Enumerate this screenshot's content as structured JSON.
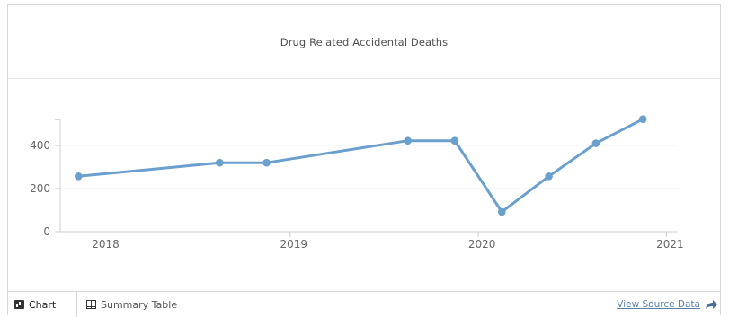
{
  "chart_data": {
    "type": "line",
    "title": "Drug Related Accidental Deaths",
    "xlabel": "",
    "ylabel": "",
    "x_ticks": [
      "2018",
      "2019",
      "2020",
      "2021"
    ],
    "y_ticks": [
      "0",
      "200",
      "400"
    ],
    "ylim": [
      0,
      520
    ],
    "grid": true,
    "series": [
      {
        "color": "#6b9fce",
        "points": [
          {
            "x": "2017-11",
            "y": 257
          },
          {
            "x": "2018-08",
            "y": 320
          },
          {
            "x": "2018-11",
            "y": 320
          },
          {
            "x": "2019-08",
            "y": 422
          },
          {
            "x": "2019-11",
            "y": 422
          },
          {
            "x": "2020-02",
            "y": 92
          },
          {
            "x": "2020-05",
            "y": 257
          },
          {
            "x": "2020-08",
            "y": 410
          },
          {
            "x": "2020-11",
            "y": 522
          }
        ]
      }
    ]
  },
  "tabs": {
    "chart_label": "Chart",
    "table_label": "Summary Table"
  },
  "footer": {
    "source_link": "View Source Data"
  },
  "icons": {
    "chart_tab": "chart-icon",
    "table_tab": "table-icon",
    "share": "share-arrow-icon"
  }
}
